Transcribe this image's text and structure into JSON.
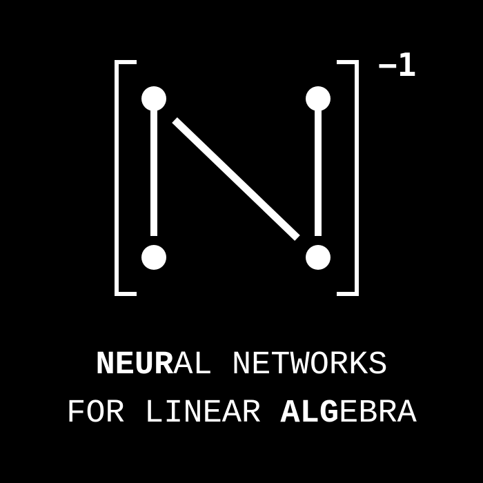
{
  "logo": {
    "exponent": "−1",
    "foreground": "#ffffff",
    "background": "#000000"
  },
  "title": {
    "line1": {
      "bold": "NEUR",
      "rest": "AL NETWORKS"
    },
    "line2": {
      "prefix": "FOR LINEAR ",
      "bold": "ALG",
      "rest": "EBRA"
    }
  }
}
